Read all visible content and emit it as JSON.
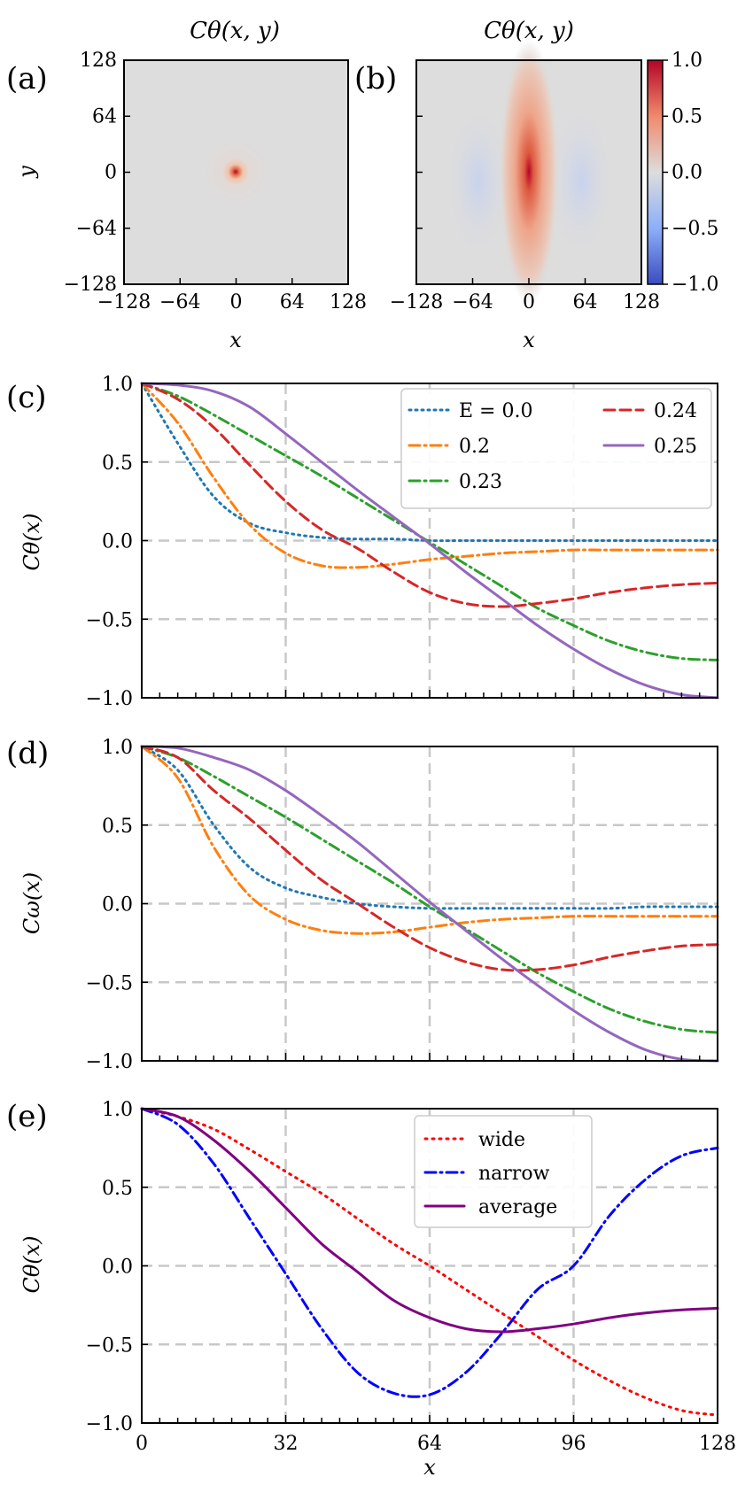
{
  "chart_data": [
    {
      "id": "a",
      "panel_label": "(a)",
      "type": "heatmap",
      "title": "Cθ(x, y)",
      "xlabel": "x",
      "ylabel": "y",
      "xlim": [
        -128,
        128
      ],
      "ylim": [
        -128,
        128
      ],
      "xticks": [
        -128,
        -64,
        0,
        64,
        128
      ],
      "yticks": [
        -128,
        -64,
        0,
        64,
        128
      ],
      "xtick_labels": [
        "−128",
        "−64",
        "0",
        "64",
        "128"
      ],
      "ytick_labels": [
        "−128",
        "−64",
        "0",
        "64",
        "128"
      ],
      "background_value": 0.0,
      "peak": {
        "x": 0,
        "y": 0,
        "value": 1.0
      },
      "clim": [
        -1,
        1
      ]
    },
    {
      "id": "b",
      "panel_label": "(b)",
      "type": "heatmap",
      "title": "Cθ(x, y)",
      "xlabel": "x",
      "xlim": [
        -128,
        128
      ],
      "ylim": [
        -128,
        128
      ],
      "xticks": [
        -128,
        -64,
        0,
        64,
        128
      ],
      "xtick_labels": [
        "−128",
        "−64",
        "0",
        "64",
        "128"
      ],
      "background_value": 0.0,
      "peak": {
        "x": 0,
        "y": 0,
        "value": 1.0
      },
      "side_lobe_value": -0.1,
      "clim": [
        -1,
        1
      ],
      "colorbar": {
        "ticks": [
          1.0,
          0.5,
          0.0,
          -0.5,
          -1.0
        ],
        "tick_labels": [
          "1.0",
          "0.5",
          "0.0",
          "−0.5",
          "−1.0"
        ],
        "colors": {
          "high": "#b40426",
          "mid": "#dddddd",
          "low": "#3b4cc0"
        }
      }
    },
    {
      "id": "c",
      "panel_label": "(c)",
      "type": "line",
      "ylabel": "Cθ(x)",
      "xlim": [
        0,
        128
      ],
      "ylim": [
        -1,
        1
      ],
      "yticks": [
        1.0,
        0.5,
        0.0,
        -0.5,
        -1.0
      ],
      "ytick_labels": [
        "1.0",
        "0.5",
        "0.0",
        "−0.5",
        "−1.0"
      ],
      "grid_x": [
        32,
        64,
        96
      ],
      "grid_y": [
        0.5,
        0,
        -0.5
      ],
      "x": [
        0,
        8,
        16,
        24,
        32,
        40,
        48,
        56,
        64,
        72,
        80,
        88,
        96,
        104,
        112,
        120,
        128
      ],
      "series": [
        {
          "name": "E = 0.0",
          "color": "#1f77b4",
          "dash": "2,5",
          "values": [
            1.0,
            0.62,
            0.28,
            0.11,
            0.05,
            0.02,
            0.01,
            0.01,
            0.0,
            0.0,
            0.0,
            0.0,
            0.0,
            0.0,
            0.0,
            0.0,
            0.0
          ]
        },
        {
          "name": "0.2",
          "color": "#ff7f0e",
          "dash": "12,5,2,5",
          "values": [
            1.0,
            0.75,
            0.4,
            0.1,
            -0.08,
            -0.16,
            -0.17,
            -0.15,
            -0.12,
            -0.1,
            -0.08,
            -0.07,
            -0.06,
            -0.06,
            -0.06,
            -0.06,
            -0.06
          ]
        },
        {
          "name": "0.23",
          "color": "#2ca02c",
          "dash": "12,5,2,5",
          "values": [
            1.0,
            0.92,
            0.8,
            0.67,
            0.54,
            0.41,
            0.27,
            0.13,
            -0.01,
            -0.15,
            -0.29,
            -0.43,
            -0.54,
            -0.64,
            -0.71,
            -0.75,
            -0.76
          ]
        },
        {
          "name": "0.24",
          "color": "#d62728",
          "dash": "12,6",
          "values": [
            1.0,
            0.9,
            0.72,
            0.48,
            0.25,
            0.07,
            -0.05,
            -0.2,
            -0.33,
            -0.4,
            -0.42,
            -0.4,
            -0.37,
            -0.33,
            -0.3,
            -0.28,
            -0.27
          ]
        },
        {
          "name": "0.25",
          "color": "#9467bd",
          "dash": "",
          "values": [
            1.0,
            0.99,
            0.95,
            0.85,
            0.68,
            0.5,
            0.32,
            0.15,
            -0.02,
            -0.2,
            -0.37,
            -0.54,
            -0.69,
            -0.82,
            -0.92,
            -0.98,
            -1.0
          ]
        }
      ]
    },
    {
      "id": "d",
      "panel_label": "(d)",
      "type": "line",
      "ylabel": "Cω(x)",
      "xlim": [
        0,
        128
      ],
      "ylim": [
        -1,
        1
      ],
      "yticks": [
        1.0,
        0.5,
        0.0,
        -0.5,
        -1.0
      ],
      "ytick_labels": [
        "1.0",
        "0.5",
        "0.0",
        "−0.5",
        "−1.0"
      ],
      "grid_x": [
        32,
        64,
        96
      ],
      "grid_y": [
        0.5,
        0,
        -0.5
      ],
      "x": [
        0,
        8,
        16,
        24,
        32,
        40,
        48,
        56,
        64,
        72,
        80,
        88,
        96,
        104,
        112,
        120,
        128
      ],
      "series": [
        {
          "name": "E = 0.0",
          "color": "#1f77b4",
          "dash": "2,5",
          "values": [
            1.0,
            0.85,
            0.5,
            0.23,
            0.1,
            0.04,
            0.0,
            -0.02,
            -0.03,
            -0.03,
            -0.03,
            -0.03,
            -0.03,
            -0.03,
            -0.02,
            -0.02,
            -0.02
          ]
        },
        {
          "name": "0.2",
          "color": "#ff7f0e",
          "dash": "12,5,2,5",
          "values": [
            1.0,
            0.8,
            0.36,
            0.05,
            -0.1,
            -0.17,
            -0.19,
            -0.18,
            -0.15,
            -0.12,
            -0.1,
            -0.09,
            -0.08,
            -0.08,
            -0.08,
            -0.08,
            -0.08
          ]
        },
        {
          "name": "0.23",
          "color": "#2ca02c",
          "dash": "12,5,2,5",
          "values": [
            1.0,
            0.93,
            0.81,
            0.68,
            0.55,
            0.41,
            0.27,
            0.13,
            -0.02,
            -0.16,
            -0.3,
            -0.44,
            -0.56,
            -0.67,
            -0.75,
            -0.8,
            -0.82
          ]
        },
        {
          "name": "0.24",
          "color": "#d62728",
          "dash": "12,6",
          "values": [
            1.0,
            0.93,
            0.72,
            0.54,
            0.34,
            0.15,
            0.0,
            -0.15,
            -0.28,
            -0.37,
            -0.42,
            -0.42,
            -0.39,
            -0.34,
            -0.3,
            -0.27,
            -0.26
          ]
        },
        {
          "name": "0.25",
          "color": "#9467bd",
          "dash": "",
          "values": [
            1.0,
            0.99,
            0.93,
            0.85,
            0.72,
            0.56,
            0.39,
            0.2,
            0.01,
            -0.17,
            -0.35,
            -0.52,
            -0.68,
            -0.82,
            -0.93,
            -0.99,
            -1.0
          ]
        }
      ]
    },
    {
      "id": "e",
      "panel_label": "(e)",
      "type": "line",
      "ylabel": "Cθ(x)",
      "xlabel": "x",
      "xlim": [
        0,
        128
      ],
      "ylim": [
        -1,
        1
      ],
      "xticks": [
        0,
        32,
        64,
        96,
        128
      ],
      "xtick_labels": [
        "0",
        "32",
        "64",
        "96",
        "128"
      ],
      "yticks": [
        1.0,
        0.5,
        0.0,
        -0.5,
        -1.0
      ],
      "ytick_labels": [
        "1.0",
        "0.5",
        "0.0",
        "−0.5",
        "−1.0"
      ],
      "grid_x": [
        32,
        64,
        96
      ],
      "grid_y": [
        0.5,
        0,
        -0.5
      ],
      "x": [
        0,
        8,
        16,
        24,
        32,
        40,
        48,
        56,
        64,
        72,
        80,
        88,
        96,
        104,
        112,
        120,
        128
      ],
      "series": [
        {
          "name": "wide",
          "color": "#ff0000",
          "dash": "2,6",
          "values": [
            1.0,
            0.95,
            0.87,
            0.74,
            0.6,
            0.46,
            0.3,
            0.14,
            0.0,
            -0.15,
            -0.3,
            -0.45,
            -0.6,
            -0.73,
            -0.84,
            -0.92,
            -0.95
          ]
        },
        {
          "name": "narrow",
          "color": "#0000ff",
          "dash": "12,5,2,5",
          "values": [
            1.0,
            0.9,
            0.65,
            0.3,
            -0.05,
            -0.4,
            -0.68,
            -0.81,
            -0.82,
            -0.68,
            -0.43,
            -0.15,
            0.0,
            0.32,
            0.55,
            0.7,
            0.75
          ]
        },
        {
          "name": "average",
          "color": "#800080",
          "dash": "",
          "values": [
            1.0,
            0.95,
            0.8,
            0.6,
            0.37,
            0.14,
            -0.04,
            -0.22,
            -0.33,
            -0.4,
            -0.42,
            -0.4,
            -0.37,
            -0.33,
            -0.3,
            -0.28,
            -0.27
          ]
        }
      ]
    }
  ]
}
